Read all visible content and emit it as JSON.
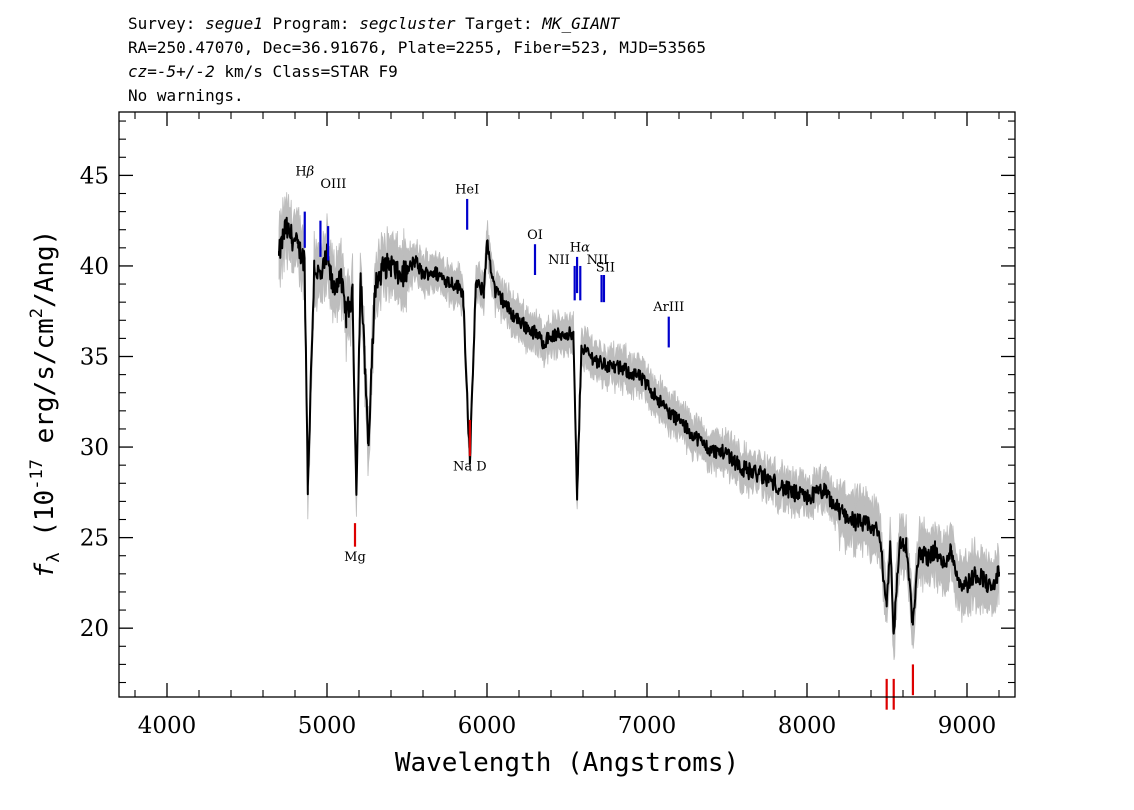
{
  "header": {
    "line1": [
      {
        "text": "Survey: ",
        "italic": false
      },
      {
        "text": "segue1",
        "italic": true
      },
      {
        "text": " Program: ",
        "italic": false
      },
      {
        "text": "segcluster",
        "italic": true
      },
      {
        "text": " Target: ",
        "italic": false
      },
      {
        "text": "MK_GIANT",
        "italic": true
      }
    ],
    "line2": "RA=250.47070, Dec=36.91676, Plate=2255, Fiber=523, MJD=53565",
    "line3": [
      {
        "text": "cz=-5+/-2",
        "italic": true
      },
      {
        "text": " km/s Class=STAR F9",
        "italic": false
      }
    ],
    "line4": "No warnings."
  },
  "colors": {
    "flux": "#000000",
    "error_band": "#bdbdbd",
    "emission": "#0000cc",
    "absorption": "#dd0000",
    "axes": "#000000"
  },
  "chart_data": {
    "type": "line",
    "xlabel": "Wavelength (Angstroms)",
    "ylabel_parts": {
      "f": "f",
      "sub": "λ",
      "open": " (10",
      "exp1": "-17",
      "mid": " erg/s/cm",
      "exp2": "2",
      "close": "/Ang)"
    },
    "xlim": [
      3700,
      9300
    ],
    "ylim": [
      16.2,
      48.5
    ],
    "xticks": [
      4000,
      5000,
      6000,
      7000,
      8000,
      9000
    ],
    "yticks": [
      20,
      25,
      30,
      35,
      40,
      45
    ],
    "grid": false,
    "series": [
      {
        "role": "flux",
        "x": [
          4700,
          4740,
          4780,
          4820,
          4860,
          4880,
          4920,
          4960,
          5000,
          5040,
          5080,
          5120,
          5160,
          5183,
          5210,
          5260,
          5300,
          5350,
          5400,
          5450,
          5500,
          5550,
          5600,
          5650,
          5700,
          5750,
          5800,
          5850,
          5893,
          5930,
          5980,
          6000,
          6050,
          6100,
          6150,
          6200,
          6250,
          6300,
          6350,
          6400,
          6450,
          6500,
          6540,
          6563,
          6590,
          6650,
          6700,
          6750,
          6800,
          6850,
          6900,
          6950,
          7000,
          7050,
          7100,
          7150,
          7200,
          7250,
          7300,
          7400,
          7500,
          7600,
          7700,
          7800,
          7900,
          8000,
          8100,
          8200,
          8300,
          8400,
          8450,
          8498,
          8520,
          8542,
          8580,
          8620,
          8662,
          8700,
          8750,
          8800,
          8850,
          8900,
          8950,
          9000,
          9050,
          9100,
          9150,
          9200
        ],
        "y": [
          40.6,
          42.1,
          41.6,
          41.0,
          40.3,
          27.8,
          40.0,
          39.3,
          40.5,
          38.6,
          39.6,
          37.3,
          38.3,
          27.5,
          39.6,
          30.1,
          38.9,
          39.9,
          40.1,
          39.4,
          39.7,
          40.3,
          39.5,
          39.7,
          39.5,
          39.2,
          39.0,
          38.6,
          29.1,
          39.0,
          38.6,
          41.3,
          38.6,
          38.1,
          37.4,
          37.0,
          36.6,
          36.3,
          35.8,
          36.1,
          36.2,
          36.3,
          36.1,
          27.1,
          35.6,
          35.0,
          34.7,
          34.5,
          34.4,
          34.3,
          34.1,
          33.9,
          33.4,
          32.9,
          32.3,
          31.8,
          31.5,
          31.0,
          30.6,
          29.8,
          29.7,
          28.8,
          28.5,
          28.0,
          27.5,
          27.2,
          27.6,
          26.5,
          25.9,
          25.6,
          25.3,
          21.2,
          24.8,
          19.7,
          24.8,
          24.5,
          20.2,
          24.3,
          23.9,
          24.3,
          23.5,
          24.3,
          22.6,
          22.4,
          23.0,
          22.8,
          22.1,
          23.1
        ]
      }
    ],
    "emission_lines": [
      {
        "label": "Hβ",
        "label_main": "H",
        "label_greek": "β",
        "x": 4861,
        "y_low": 41.0,
        "y_high": 43.0,
        "label_x": 4861,
        "label_y": 45.0
      },
      {
        "label": "OIII",
        "label_main": "OIII",
        "label_greek": "",
        "x": 4959,
        "y_low": 40.5,
        "y_high": 42.5,
        "label_x": 5040,
        "label_y": 44.3
      },
      {
        "label": "",
        "label_main": "",
        "label_greek": "",
        "x": 5007,
        "y_low": 40.3,
        "y_high": 42.2,
        "label_x": 0,
        "label_y": 0
      },
      {
        "label": "HeI",
        "label_main": "HeI",
        "label_greek": "",
        "x": 5876,
        "y_low": 42.0,
        "y_high": 43.7,
        "label_x": 5876,
        "label_y": 44.0
      },
      {
        "label": "OI",
        "label_main": "OI",
        "label_greek": "",
        "x": 6300,
        "y_low": 39.5,
        "y_high": 41.2,
        "label_x": 6300,
        "label_y": 41.5
      },
      {
        "label": "NII",
        "label_main": "NII",
        "label_greek": "",
        "x": 6548,
        "y_low": 38.1,
        "y_high": 40.0,
        "label_x": 6450,
        "label_y": 40.1
      },
      {
        "label": "Hα",
        "label_main": "H",
        "label_greek": "α",
        "x": 6563,
        "y_low": 38.5,
        "y_high": 40.5,
        "label_x": 6580,
        "label_y": 40.8
      },
      {
        "label": "NII",
        "label_main": "NII",
        "label_greek": "",
        "x": 6583,
        "y_low": 38.1,
        "y_high": 40.0,
        "label_x": 6690,
        "label_y": 40.1
      },
      {
        "label": "SII",
        "label_main": "SII",
        "label_greek": "",
        "x": 6716,
        "y_low": 38.0,
        "y_high": 39.5,
        "label_x": 6740,
        "label_y": 39.7
      },
      {
        "label": "",
        "label_main": "",
        "label_greek": "",
        "x": 6731,
        "y_low": 38.0,
        "y_high": 39.5,
        "label_x": 0,
        "label_y": 0
      },
      {
        "label": "ArIII",
        "label_main": "ArIII",
        "label_greek": "",
        "x": 7136,
        "y_low": 35.5,
        "y_high": 37.2,
        "label_x": 7136,
        "label_y": 37.5
      }
    ],
    "absorption_lines": [
      {
        "label": "Na D",
        "x": 5893,
        "y_low": 29.5,
        "y_high": 31.5,
        "label_x": 5893,
        "label_y": 28.7
      },
      {
        "label": "Mg",
        "x": 5175,
        "y_low": 24.5,
        "y_high": 25.8,
        "label_x": 5175,
        "label_y": 23.7
      },
      {
        "label": "",
        "x": 8498,
        "y_low": 15.5,
        "y_high": 17.2,
        "label_x": 0,
        "label_y": 0
      },
      {
        "label": "",
        "x": 8542,
        "y_low": 15.5,
        "y_high": 17.2,
        "label_x": 0,
        "label_y": 0
      },
      {
        "label": "",
        "x": 8662,
        "y_low": 16.3,
        "y_high": 18.0,
        "label_x": 0,
        "label_y": 0
      }
    ]
  }
}
